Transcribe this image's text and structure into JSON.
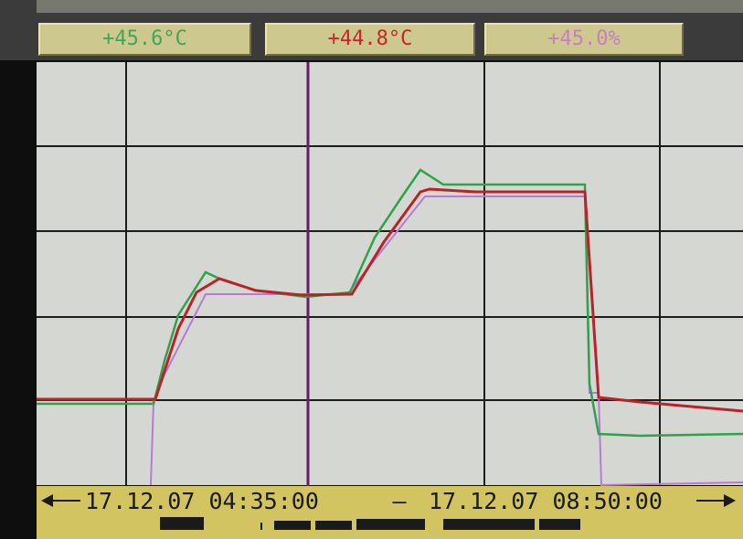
{
  "readouts": [
    "+45.6°C",
    "+44.8°C",
    "+45.0%"
  ],
  "time_range": {
    "start": "17.12.07 04:35:00",
    "separator": "—",
    "end": "17.12.07 08:50:00"
  }
}
